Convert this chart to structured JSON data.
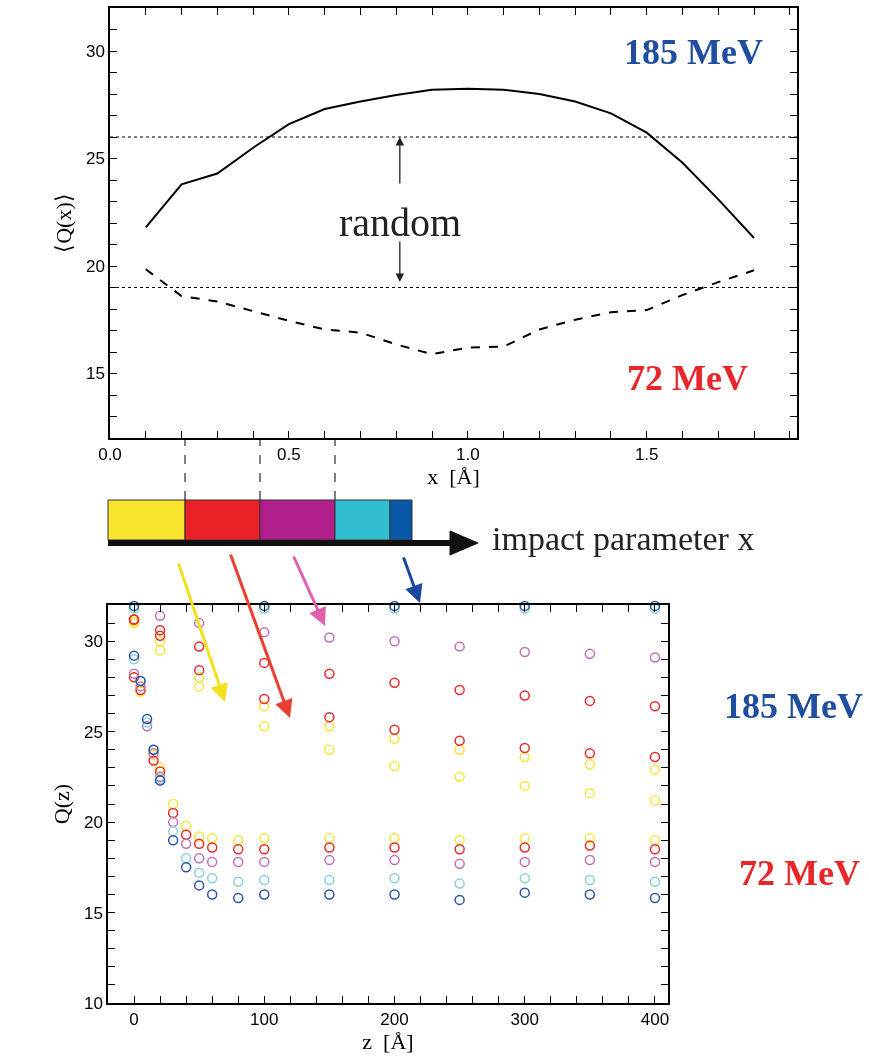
{
  "chart_data": [
    {
      "type": "line",
      "xlabel": "x  [Å]",
      "ylabel": "⟨Q(x)⟩",
      "marker": "none",
      "legend": false,
      "xlim": [
        0,
        1.92
      ],
      "xticks": [
        {
          "value": 0,
          "label": "0.0"
        },
        {
          "value": 0.1,
          "label": null
        },
        {
          "value": 0.2,
          "label": null
        },
        {
          "value": 0.3,
          "label": null
        },
        {
          "value": 0.4,
          "label": null
        },
        {
          "value": 0.5,
          "label": "0.5"
        },
        {
          "value": 0.6,
          "label": null
        },
        {
          "value": 0.7,
          "label": null
        },
        {
          "value": 0.8,
          "label": null
        },
        {
          "value": 0.9,
          "label": null
        },
        {
          "value": 1.0,
          "label": "1.0"
        },
        {
          "value": 1.1,
          "label": null
        },
        {
          "value": 1.2,
          "label": null
        },
        {
          "value": 1.3,
          "label": null
        },
        {
          "value": 1.4,
          "label": null
        },
        {
          "value": 1.5,
          "label": "1.5"
        },
        {
          "value": 1.6,
          "label": null
        },
        {
          "value": 1.7,
          "label": null
        },
        {
          "value": 1.8,
          "label": null
        },
        {
          "value": 1.9,
          "label": null
        }
      ],
      "ylim": [
        12,
        32
      ],
      "yticks": [
        {
          "value": 12,
          "label": null
        },
        {
          "value": 13,
          "label": null
        },
        {
          "value": 14,
          "label": null
        },
        15,
        {
          "value": 16,
          "label": null
        },
        {
          "value": 17,
          "label": null
        },
        {
          "value": 18,
          "label": null
        },
        {
          "value": 19,
          "label": null
        },
        20,
        {
          "value": 21,
          "label": null
        },
        {
          "value": 22,
          "label": null
        },
        {
          "value": 23,
          "label": null
        },
        {
          "value": 24,
          "label": null
        },
        25,
        {
          "value": 26,
          "label": null
        },
        {
          "value": 27,
          "label": null
        },
        {
          "value": 28,
          "label": null
        },
        {
          "value": 29,
          "label": null
        },
        30,
        {
          "value": 31,
          "label": null
        },
        {
          "value": 32,
          "label": null
        }
      ],
      "x": [
        0.1,
        0.2,
        0.3,
        0.4,
        0.5,
        0.6,
        0.7,
        0.8,
        0.9,
        1.0,
        1.1,
        1.2,
        1.3,
        1.4,
        1.5,
        1.6,
        1.7,
        1.8
      ],
      "series": [
        {
          "color": "#000000",
          "line_style": "solid",
          "values": [
            21.8,
            23.8,
            24.3,
            25.5,
            26.6,
            27.3,
            27.65,
            27.95,
            28.2,
            28.25,
            28.2,
            28.0,
            27.65,
            27.1,
            26.2,
            24.8,
            23.1,
            21.3
          ]
        },
        {
          "color": "#000000",
          "line_style": "dashed",
          "values": [
            19.85,
            18.6,
            18.35,
            17.9,
            17.45,
            17.05,
            16.9,
            16.35,
            15.9,
            16.2,
            16.25,
            17.05,
            17.5,
            17.85,
            17.95,
            18.65,
            19.25,
            19.8
          ]
        }
      ],
      "ref_lines": [
        {
          "axis": "y",
          "value": 26,
          "line_style": "dotted",
          "color": "#000000"
        },
        {
          "axis": "y",
          "value": 19,
          "line_style": "dotted",
          "color": "#000000"
        }
      ],
      "annotations": [
        "185 MeV",
        "72 MeV",
        {
          "text": "random",
          "x": 0.81,
          "y": 26
        },
        "impact parameter x"
      ]
    },
    {
      "type": "scatter",
      "xlabel": "z  [Å]",
      "ylabel": "Q(z)",
      "marker": "circle",
      "legend": false,
      "xlim": [
        -20,
        410
      ],
      "xticks": [
        {
          "value": -20,
          "label": null
        },
        0,
        {
          "value": 20,
          "label": null
        },
        {
          "value": 40,
          "label": null
        },
        {
          "value": 60,
          "label": null
        },
        {
          "value": 80,
          "label": null
        },
        100,
        {
          "value": 120,
          "label": null
        },
        {
          "value": 140,
          "label": null
        },
        {
          "value": 160,
          "label": null
        },
        {
          "value": 180,
          "label": null
        },
        200,
        {
          "value": 220,
          "label": null
        },
        {
          "value": 240,
          "label": null
        },
        {
          "value": 260,
          "label": null
        },
        {
          "value": 280,
          "label": null
        },
        300,
        {
          "value": 320,
          "label": null
        },
        {
          "value": 340,
          "label": null
        },
        {
          "value": 360,
          "label": null
        },
        {
          "value": 380,
          "label": null
        },
        400
      ],
      "ylim": [
        10,
        32
      ],
      "yticks": [
        10,
        {
          "value": 11,
          "label": null
        },
        {
          "value": 12,
          "label": null
        },
        {
          "value": 13,
          "label": null
        },
        {
          "value": 14,
          "label": null
        },
        15,
        {
          "value": 16,
          "label": null
        },
        {
          "value": 17,
          "label": null
        },
        {
          "value": 18,
          "label": null
        },
        {
          "value": 19,
          "label": null
        },
        20,
        {
          "value": 21,
          "label": null
        },
        {
          "value": 22,
          "label": null
        },
        {
          "value": 23,
          "label": null
        },
        {
          "value": 24,
          "label": null
        },
        25,
        {
          "value": 26,
          "label": null
        },
        {
          "value": 27,
          "label": null
        },
        {
          "value": 28,
          "label": null
        },
        {
          "value": 29,
          "label": null
        },
        30,
        {
          "value": 31,
          "label": null
        },
        {
          "value": 32,
          "label": null
        }
      ],
      "series": [
        {
          "color": "#f5e63c",
          "x": [
            0,
            20,
            50,
            100,
            150,
            200,
            250,
            300,
            350,
            400
          ],
          "values": [
            31.0,
            29.5,
            27.5,
            25.3,
            24.0,
            23.1,
            22.5,
            22.0,
            21.6,
            21.2
          ]
        },
        {
          "color": "#f5e63c",
          "x": [
            0,
            20,
            50,
            100,
            150,
            200,
            250,
            300,
            350,
            400
          ],
          "values": [
            31.1,
            30.0,
            28.0,
            26.4,
            25.3,
            24.6,
            24.0,
            23.6,
            23.2,
            22.9
          ]
        },
        {
          "color": "#e82a2a",
          "x": [
            0,
            20,
            50,
            100,
            150,
            200,
            250,
            300,
            350,
            400
          ],
          "values": [
            31.2,
            30.3,
            28.4,
            26.8,
            25.8,
            25.1,
            24.5,
            24.1,
            23.8,
            23.6
          ]
        },
        {
          "color": "#e82a2a",
          "x": [
            0,
            20,
            50,
            100,
            150,
            200,
            250,
            300,
            350,
            400
          ],
          "values": [
            31.2,
            30.6,
            29.7,
            28.8,
            28.2,
            27.7,
            27.3,
            27.0,
            26.7,
            26.4
          ]
        },
        {
          "color": "#c070b8",
          "x": [
            20,
            50,
            100,
            150,
            200,
            250,
            300,
            350,
            400
          ],
          "values": [
            31.4,
            31.0,
            30.5,
            30.2,
            30.0,
            29.7,
            29.4,
            29.3,
            29.1
          ]
        },
        {
          "color": "#88d4d4",
          "x": [
            0,
            100,
            200,
            300,
            400
          ],
          "values": [
            31.8,
            31.8,
            31.8,
            31.8,
            31.8
          ]
        },
        {
          "color": "#2a55a5",
          "x": [
            0,
            100,
            200,
            300,
            400
          ],
          "values": [
            31.95,
            31.95,
            31.95,
            31.95,
            31.95
          ]
        },
        {
          "color": "#f5e63c",
          "x": [
            0,
            5,
            10,
            15,
            20,
            30,
            40,
            50,
            60,
            80,
            100,
            150,
            200,
            250,
            300,
            350,
            400
          ],
          "values": [
            28.0,
            27.2,
            null,
            23.7,
            23.0,
            21.0,
            19.8,
            19.2,
            19.1,
            19.0,
            19.1,
            19.1,
            19.1,
            19.0,
            19.1,
            19.1,
            19.0
          ]
        },
        {
          "color": "#e82a2a",
          "x": [
            0,
            5,
            10,
            15,
            20,
            30,
            40,
            50,
            60,
            80,
            100,
            150,
            200,
            250,
            300,
            350,
            400
          ],
          "values": [
            28.0,
            27.3,
            null,
            23.4,
            22.8,
            20.5,
            19.3,
            18.8,
            18.6,
            18.5,
            18.5,
            18.6,
            18.6,
            18.5,
            18.6,
            18.7,
            18.5
          ]
        },
        {
          "color": "#c070b8",
          "x": [
            0,
            5,
            10,
            15,
            20,
            30,
            40,
            50,
            60,
            80,
            100,
            150,
            200,
            250,
            300,
            350,
            400
          ],
          "values": [
            28.2,
            27.5,
            25.3,
            23.8,
            22.5,
            20.0,
            18.8,
            18.0,
            17.8,
            17.8,
            17.8,
            17.9,
            17.9,
            17.7,
            17.8,
            17.9,
            17.8
          ]
        },
        {
          "color": "#88d4d4",
          "x": [
            0,
            5,
            10,
            15,
            20,
            30,
            40,
            50,
            60,
            80,
            100,
            150,
            200,
            250,
            300,
            350,
            400
          ],
          "values": [
            29.0,
            27.8,
            25.5,
            24.0,
            22.4,
            19.5,
            18.0,
            17.2,
            16.9,
            16.7,
            16.8,
            16.8,
            16.9,
            16.6,
            16.9,
            16.8,
            16.7
          ]
        },
        {
          "color": "#2a55a5",
          "x": [
            0,
            5,
            10,
            15,
            20,
            30,
            40,
            50,
            60,
            80,
            100,
            150,
            200,
            250,
            300,
            350,
            400
          ],
          "values": [
            29.2,
            27.8,
            25.7,
            24.0,
            22.3,
            19.0,
            17.5,
            16.5,
            16.0,
            15.8,
            16.0,
            16.0,
            16.0,
            15.7,
            16.1,
            16.0,
            15.8
          ]
        }
      ],
      "annotations": [
        "185 MeV",
        "72 MeV"
      ]
    }
  ]
}
